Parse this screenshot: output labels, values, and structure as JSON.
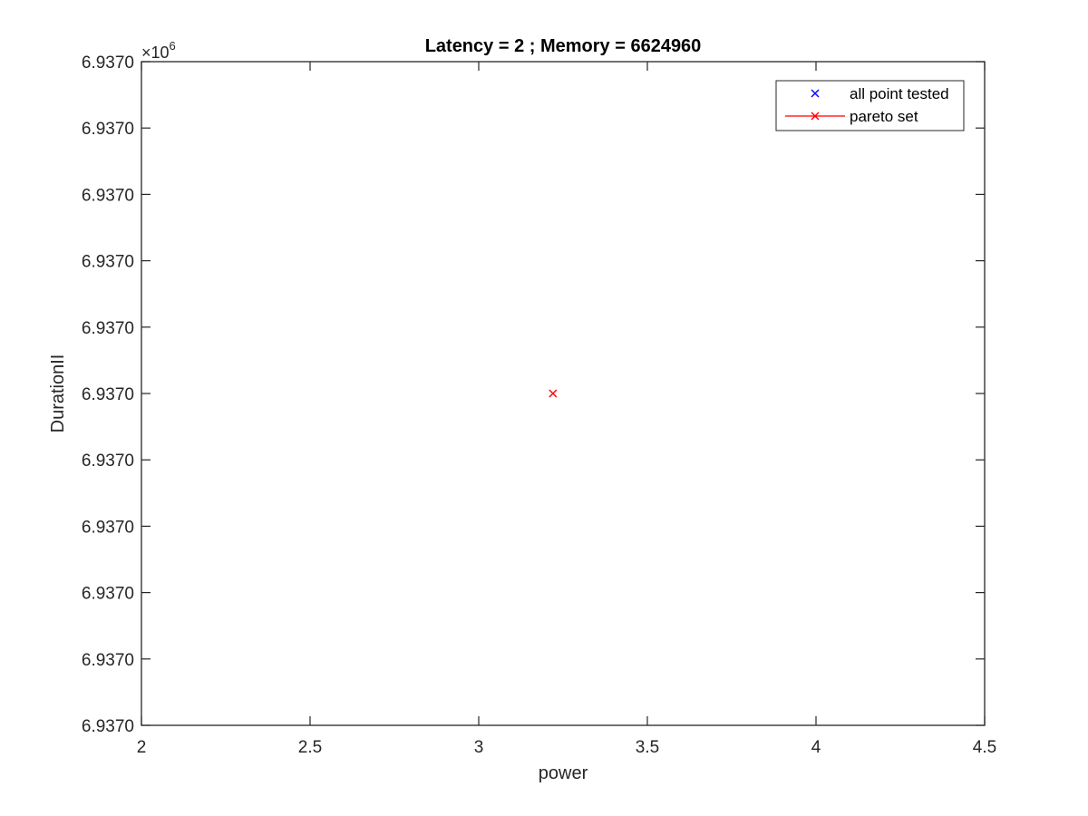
{
  "chart_data": {
    "type": "scatter",
    "title": "Latency = 2 ; Memory = 6624960",
    "xlabel": "power",
    "ylabel": "DurationII",
    "xlim": [
      2,
      4.5
    ],
    "x_ticks": [
      "2",
      "2.5",
      "3",
      "3.5",
      "4",
      "4.5"
    ],
    "y_ticks": [
      "6.9370",
      "6.9370",
      "6.9370",
      "6.9370",
      "6.9370",
      "6.9370",
      "6.9370",
      "6.9370",
      "6.9370",
      "6.9370",
      "6.9370"
    ],
    "y_exponent": "×10",
    "y_exponent_power": "6",
    "grid": false,
    "legend_position": "top-right",
    "series": [
      {
        "name": "all point tested",
        "color": "#0000ff",
        "marker": "x",
        "line": false,
        "points": []
      },
      {
        "name": "pareto set",
        "color": "#ff0000",
        "marker": "x",
        "line": true,
        "points": [
          [
            3.22,
            6937000
          ]
        ]
      }
    ]
  }
}
